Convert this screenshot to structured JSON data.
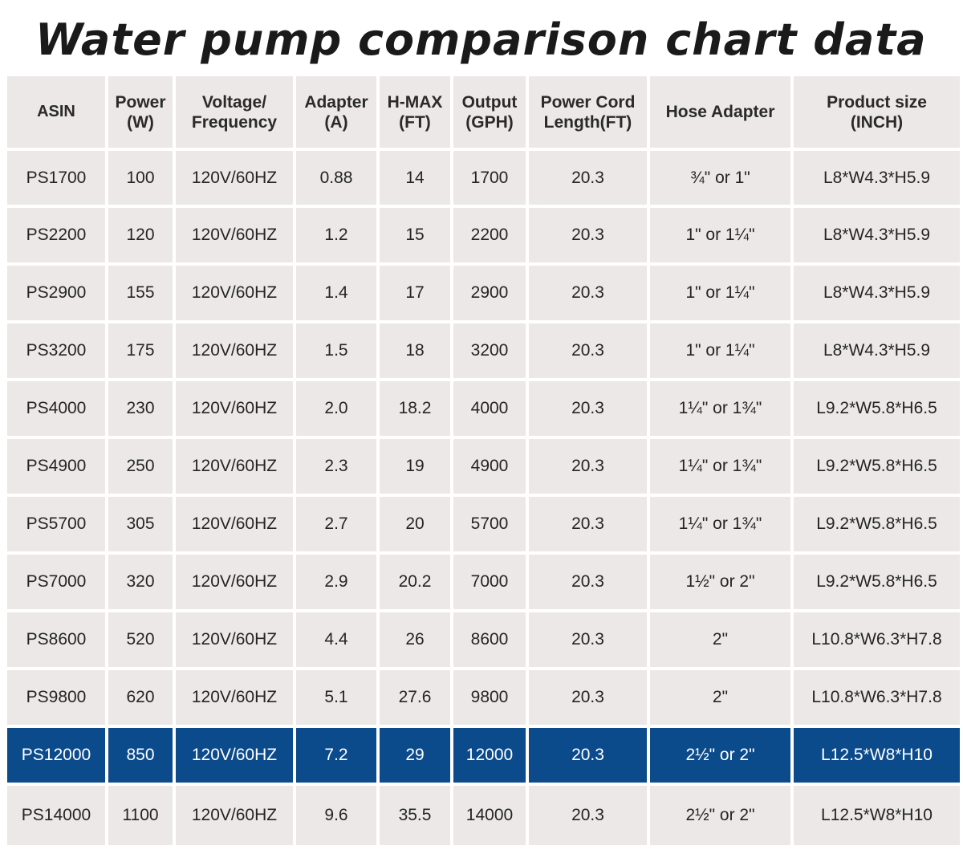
{
  "title": "Water pump comparison chart data",
  "table": {
    "headers": [
      "ASIN",
      "Power\n(W)",
      "Voltage/\nFrequency",
      "Adapter\n(A)",
      "H-MAX\n(FT)",
      "Output\n(GPH)",
      "Power Cord\nLength(FT)",
      "Hose Adapter",
      "Product size\n(INCH)"
    ],
    "rows": [
      [
        "PS1700",
        "100",
        "120V/60HZ",
        "0.88",
        "14",
        "1700",
        "20.3",
        "¾\" or 1\"",
        "L8*W4.3*H5.9"
      ],
      [
        "PS2200",
        "120",
        "120V/60HZ",
        "1.2",
        "15",
        "2200",
        "20.3",
        "1\" or 1¼\"",
        "L8*W4.3*H5.9"
      ],
      [
        "PS2900",
        "155",
        "120V/60HZ",
        "1.4",
        "17",
        "2900",
        "20.3",
        "1\" or 1¼\"",
        "L8*W4.3*H5.9"
      ],
      [
        "PS3200",
        "175",
        "120V/60HZ",
        "1.5",
        "18",
        "3200",
        "20.3",
        "1\" or 1¼\"",
        "L8*W4.3*H5.9"
      ],
      [
        "PS4000",
        "230",
        "120V/60HZ",
        "2.0",
        "18.2",
        "4000",
        "20.3",
        "1¼\" or 1¾\"",
        "L9.2*W5.8*H6.5"
      ],
      [
        "PS4900",
        "250",
        "120V/60HZ",
        "2.3",
        "19",
        "4900",
        "20.3",
        "1¼\" or 1¾\"",
        "L9.2*W5.8*H6.5"
      ],
      [
        "PS5700",
        "305",
        "120V/60HZ",
        "2.7",
        "20",
        "5700",
        "20.3",
        "1¼\" or 1¾\"",
        "L9.2*W5.8*H6.5"
      ],
      [
        "PS7000",
        "320",
        "120V/60HZ",
        "2.9",
        "20.2",
        "7000",
        "20.3",
        "1½\" or 2\"",
        "L9.2*W5.8*H6.5"
      ],
      [
        "PS8600",
        "520",
        "120V/60HZ",
        "4.4",
        "26",
        "8600",
        "20.3",
        "2\"",
        "L10.8*W6.3*H7.8"
      ],
      [
        "PS9800",
        "620",
        "120V/60HZ",
        "5.1",
        "27.6",
        "9800",
        "20.3",
        "2\"",
        "L10.8*W6.3*H7.8"
      ],
      [
        "PS12000",
        "850",
        "120V/60HZ",
        "7.2",
        "29",
        "12000",
        "20.3",
        "2½\" or 2\"",
        "L12.5*W8*H10"
      ],
      [
        "PS14000",
        "1100",
        "120V/60HZ",
        "9.6",
        "35.5",
        "14000",
        "20.3",
        "2½\" or 2\"",
        "L12.5*W8*H10"
      ]
    ],
    "highlighted_row_index": 10
  },
  "colors": {
    "cell_background": "#ebe8e7",
    "highlight_background": "#0b4a8b",
    "highlight_text": "#ffffff",
    "text": "#252525"
  }
}
